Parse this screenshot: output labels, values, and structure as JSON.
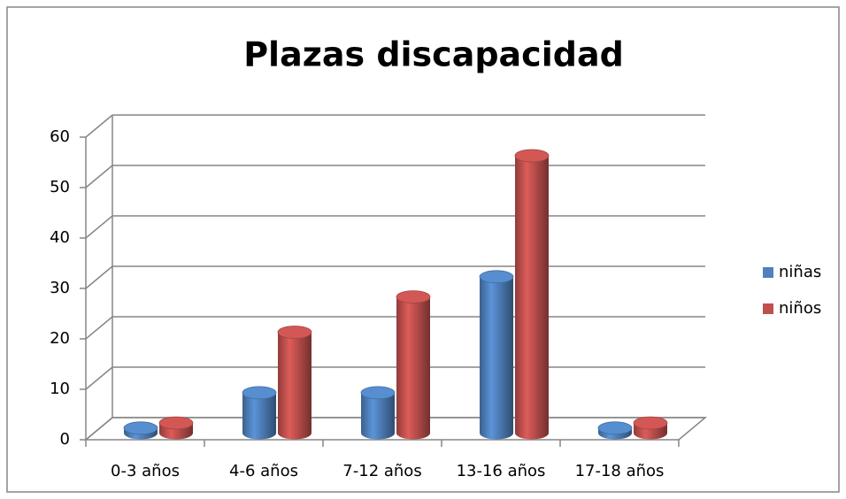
{
  "chart_data": {
    "type": "bar",
    "title": "Plazas discapacidad",
    "categories": [
      "0-3 años",
      "4-6 años",
      "7-12 años",
      "13-16 años",
      "17-18 años"
    ],
    "series": [
      {
        "name": "niñas",
        "color": "#4f81bd",
        "values": [
          1,
          8,
          8,
          31,
          1
        ]
      },
      {
        "name": "niños",
        "color": "#c0504d",
        "values": [
          2,
          20,
          27,
          55,
          2
        ]
      }
    ],
    "ylim": [
      0,
      60
    ],
    "yticks": [
      0,
      10,
      20,
      30,
      40,
      50,
      60
    ],
    "grid": true,
    "legend": "right"
  }
}
